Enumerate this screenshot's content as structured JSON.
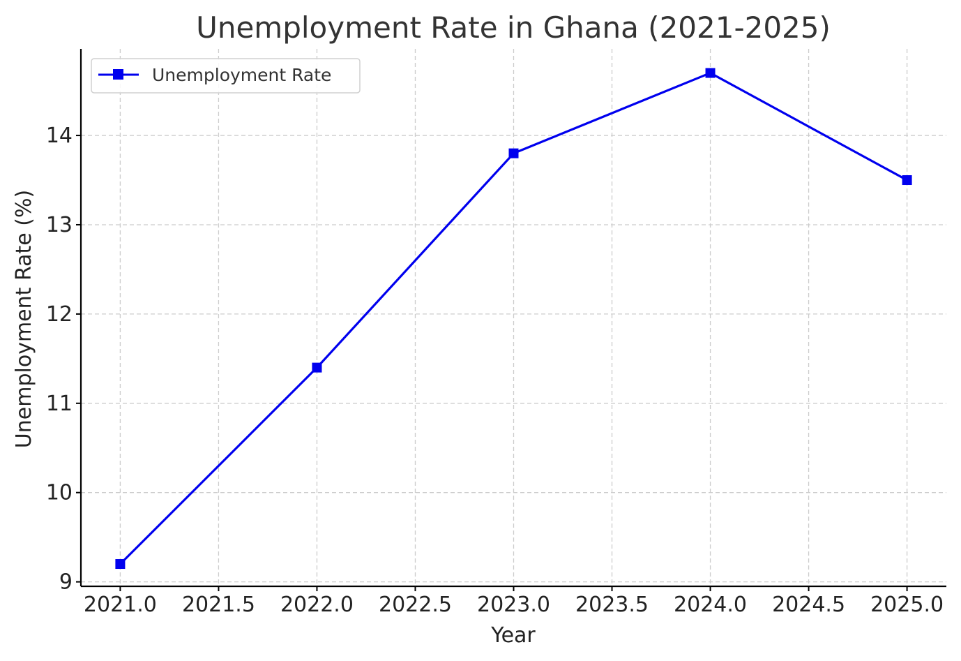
{
  "chart_data": {
    "type": "line",
    "title": "Unemployment Rate in Ghana (2021-2025)",
    "xlabel": "Year",
    "ylabel": "Unemployment Rate (%)",
    "x": [
      2021,
      2022,
      2023,
      2024,
      2025
    ],
    "series": [
      {
        "name": "Unemployment Rate",
        "values": [
          9.2,
          11.4,
          13.8,
          14.7,
          13.5
        ],
        "color": "#0000ee",
        "marker": "square"
      }
    ],
    "xlim": [
      2020.8,
      2025.2
    ],
    "ylim": [
      8.95,
      14.97
    ],
    "xticks": [
      2021.0,
      2021.5,
      2022.0,
      2022.5,
      2023.0,
      2023.5,
      2024.0,
      2024.5,
      2025.0
    ],
    "xtick_labels": [
      "2021.0",
      "2021.5",
      "2022.0",
      "2022.5",
      "2023.0",
      "2023.5",
      "2024.0",
      "2024.5",
      "2025.0"
    ],
    "yticks": [
      9,
      10,
      11,
      12,
      13,
      14
    ],
    "ytick_labels": [
      "9",
      "10",
      "11",
      "12",
      "13",
      "14"
    ],
    "grid": true,
    "legend_position": "upper-left"
  }
}
